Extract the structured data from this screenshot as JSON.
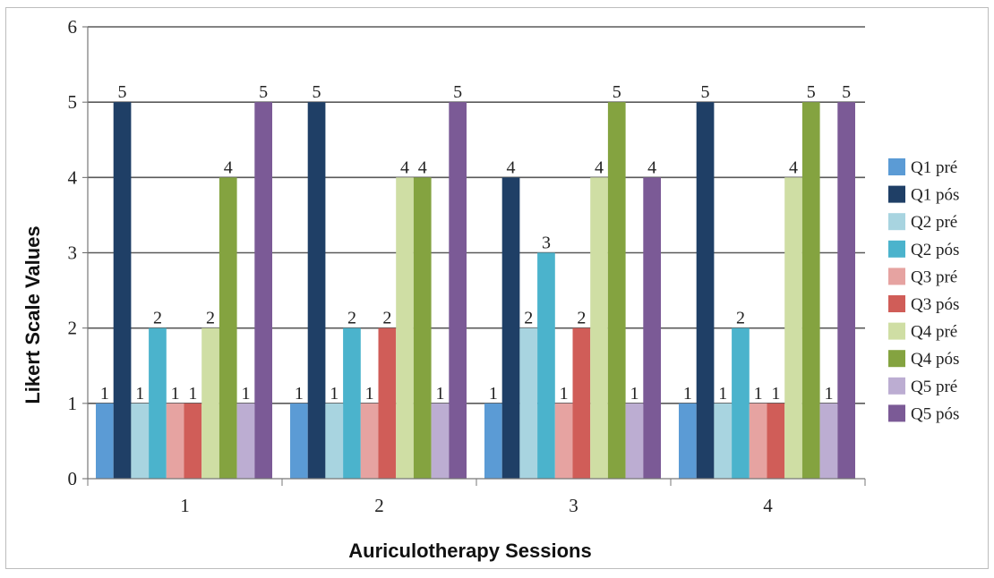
{
  "chart_data": {
    "type": "bar",
    "title": "",
    "xlabel": "Auriculotherapy Sessions",
    "ylabel": "Likert Scale Values",
    "ylim": [
      0,
      6
    ],
    "yticks": [
      0,
      1,
      2,
      3,
      4,
      5,
      6
    ],
    "grid": true,
    "legend_position": "right",
    "categories": [
      "1",
      "2",
      "3",
      "4"
    ],
    "series": [
      {
        "name": "Q1 pré",
        "color": "#5b9bd5",
        "values": [
          1,
          1,
          1,
          1
        ]
      },
      {
        "name": "Q1 pós",
        "color": "#1f3f66",
        "values": [
          5,
          5,
          4,
          5
        ]
      },
      {
        "name": "Q2 pré",
        "color": "#a8d4e0",
        "values": [
          1,
          1,
          2,
          1
        ]
      },
      {
        "name": "Q2 pós",
        "color": "#4bb3cc",
        "values": [
          2,
          2,
          3,
          2
        ]
      },
      {
        "name": "Q3 pré",
        "color": "#e6a3a1",
        "values": [
          1,
          1,
          1,
          1
        ]
      },
      {
        "name": "Q3 pós",
        "color": "#d05d58",
        "values": [
          1,
          2,
          2,
          1
        ]
      },
      {
        "name": "Q4 pré",
        "color": "#cfdea4",
        "values": [
          2,
          4,
          4,
          4
        ]
      },
      {
        "name": "Q4 pós",
        "color": "#84a340",
        "values": [
          4,
          4,
          5,
          5
        ]
      },
      {
        "name": "Q5 pré",
        "color": "#bcadd2",
        "values": [
          1,
          1,
          1,
          1
        ]
      },
      {
        "name": "Q5 pós",
        "color": "#7b5a96",
        "values": [
          5,
          5,
          4,
          5
        ]
      }
    ]
  }
}
